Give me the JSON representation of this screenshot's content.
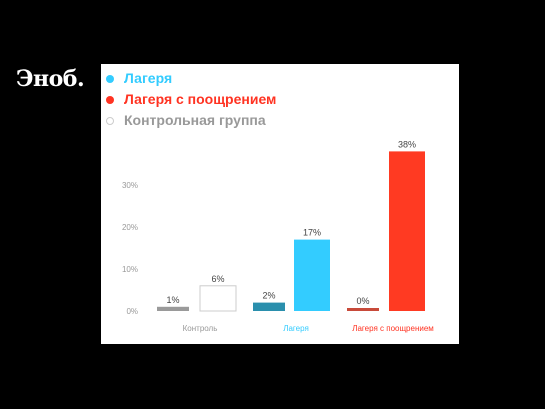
{
  "brand": {
    "logo_text": "Эноб."
  },
  "chart_data": {
    "type": "bar",
    "title": "",
    "xlabel": "",
    "ylabel": "",
    "ylim": [
      0,
      40
    ],
    "yticks": [
      0,
      10,
      20,
      30
    ],
    "ytick_labels": [
      "0%",
      "10%",
      "20%",
      "30%"
    ],
    "grid": false,
    "legend_position": "top-left",
    "categories": [
      "Контроль",
      "Лагеря",
      "Лагеря с поощрением"
    ],
    "category_colors": [
      "#999999",
      "#33ccff",
      "#ff3322"
    ],
    "bars": [
      {
        "category": "Контроль",
        "value": 1,
        "label": "1%",
        "fill": "#9a9a9a",
        "stroke": "none"
      },
      {
        "category": "Контроль",
        "value": 6,
        "label": "6%",
        "fill": "#ffffff",
        "stroke": "#cccccc"
      },
      {
        "category": "Лагеря",
        "value": 2,
        "label": "2%",
        "fill": "#2a8fad",
        "stroke": "none"
      },
      {
        "category": "Лагеря",
        "value": 17,
        "label": "17%",
        "fill": "#33ccff",
        "stroke": "none"
      },
      {
        "category": "Лагеря с поощрением",
        "value": 0,
        "label": "0%",
        "fill": "#c84a3a",
        "stroke": "none"
      },
      {
        "category": "Лагеря с поощрением",
        "value": 38,
        "label": "38%",
        "fill": "#ff3a22",
        "stroke": "none"
      }
    ],
    "legend": [
      {
        "label": "Лагеря",
        "color": "#33ccff"
      },
      {
        "label": "Лагеря с поощрением",
        "color": "#ff3322"
      },
      {
        "label": "Контрольная группа",
        "color": "#999999"
      }
    ]
  }
}
